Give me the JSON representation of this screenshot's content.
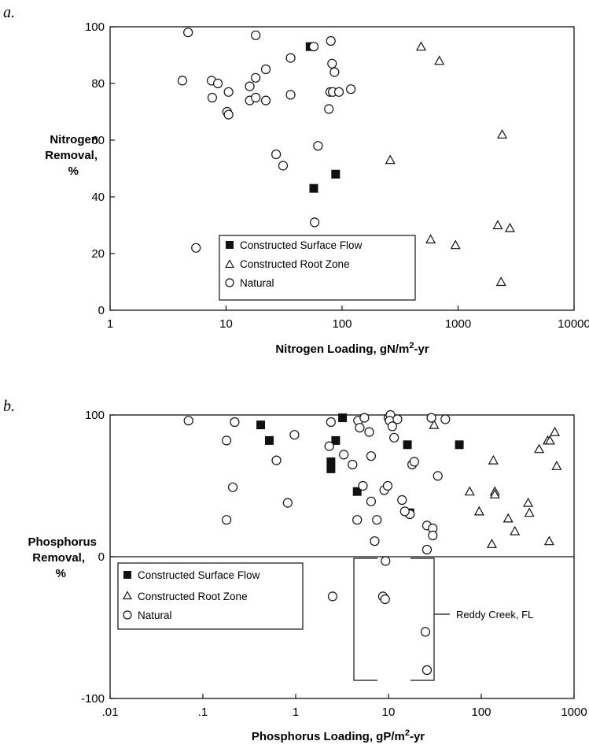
{
  "chart_data": [
    {
      "panel": "a.",
      "type": "scatter",
      "xscale": "log",
      "xlim": [
        1,
        10000
      ],
      "ylim": [
        0,
        100
      ],
      "xticks": [
        "1",
        "10",
        "100",
        "1000",
        "10000"
      ],
      "yticks": [
        "0",
        "20",
        "40",
        "60",
        "80",
        "100"
      ],
      "xlabel": "Nitrogen Loading,  gN/m2-yr",
      "ylabel": [
        "Nitrogen",
        "Removal,",
        "%"
      ],
      "legend": {
        "position": "bottom-center"
      },
      "series": [
        {
          "name": "Constructed Surface Flow",
          "marker": "filled-square",
          "points": [
            [
              53,
              93
            ],
            [
              57,
              43
            ],
            [
              88,
              48
            ]
          ]
        },
        {
          "name": "Constructed Root Zone",
          "marker": "open-triangle",
          "points": [
            [
              480,
              93
            ],
            [
              690,
              88
            ],
            [
              2400,
              62
            ],
            [
              260,
              53
            ],
            [
              580,
              25
            ],
            [
              950,
              23
            ],
            [
              2200,
              30
            ],
            [
              2800,
              29
            ],
            [
              2350,
              10
            ]
          ]
        },
        {
          "name": "Natural",
          "marker": "open-circle",
          "points": [
            [
              4.7,
              98
            ],
            [
              4.2,
              81
            ],
            [
              7.5,
              81
            ],
            [
              8.5,
              80
            ],
            [
              10.5,
              77
            ],
            [
              7.6,
              75
            ],
            [
              10.2,
              70
            ],
            [
              10.5,
              69
            ],
            [
              18,
              97
            ],
            [
              16,
              79
            ],
            [
              18,
              82
            ],
            [
              22,
              85
            ],
            [
              16,
              74
            ],
            [
              18,
              75
            ],
            [
              22,
              74
            ],
            [
              36,
              89
            ],
            [
              36,
              76
            ],
            [
              27,
              55
            ],
            [
              31,
              51
            ],
            [
              57,
              93
            ],
            [
              62,
              58
            ],
            [
              80,
              95
            ],
            [
              82,
              87
            ],
            [
              86,
              84
            ],
            [
              79,
              77
            ],
            [
              83,
              77
            ],
            [
              94,
              77
            ],
            [
              119,
              78
            ],
            [
              77,
              71
            ],
            [
              58,
              31
            ],
            [
              5.5,
              22
            ]
          ]
        }
      ]
    },
    {
      "panel": "b.",
      "type": "scatter",
      "xscale": "log",
      "xlim": [
        0.01,
        1000
      ],
      "ylim": [
        -100,
        100
      ],
      "xticks": [
        ".01",
        ".1",
        "1",
        "10",
        "100",
        "1000"
      ],
      "yticks": [
        "-100",
        "0",
        "100"
      ],
      "xlabel": "Phosphorus Loading, gP/m2-yr",
      "ylabel": [
        "Phosphorus",
        "Removal,",
        "%"
      ],
      "legend": {
        "position": "left-center"
      },
      "annotation": "Reddy Creek, FL",
      "series": [
        {
          "name": "Constructed Surface Flow",
          "marker": "filled-square",
          "points": [
            [
              0.42,
              93
            ],
            [
              0.52,
              82
            ],
            [
              2.7,
              82
            ],
            [
              3.2,
              98
            ],
            [
              2.4,
              67
            ],
            [
              2.4,
              62
            ],
            [
              4.6,
              46
            ],
            [
              16,
              79
            ],
            [
              17,
              31
            ],
            [
              58,
              79
            ]
          ]
        },
        {
          "name": "Constructed Root Zone",
          "marker": "open-triangle",
          "points": [
            [
              31,
              93
            ],
            [
              135,
              68
            ],
            [
              75,
              46
            ],
            [
              95,
              32
            ],
            [
              140,
              46
            ],
            [
              140,
              44
            ],
            [
              130,
              9
            ],
            [
              195,
              27
            ],
            [
              230,
              18
            ],
            [
              320,
              38
            ],
            [
              330,
              31
            ],
            [
              420,
              76
            ],
            [
              520,
              82
            ],
            [
              550,
              82
            ],
            [
              620,
              88
            ],
            [
              650,
              64
            ],
            [
              540,
              11
            ]
          ]
        },
        {
          "name": "Natural",
          "marker": "open-circle",
          "points": [
            [
              0.07,
              96
            ],
            [
              0.18,
              82
            ],
            [
              0.22,
              95
            ],
            [
              0.97,
              86
            ],
            [
              0.62,
              68
            ],
            [
              0.21,
              49
            ],
            [
              0.18,
              26
            ],
            [
              0.82,
              38
            ],
            [
              2.3,
              78
            ],
            [
              2.4,
              95
            ],
            [
              3.3,
              72
            ],
            [
              4.1,
              65
            ],
            [
              4.7,
              96
            ],
            [
              4.9,
              91
            ],
            [
              5.5,
              98
            ],
            [
              6.2,
              88
            ],
            [
              6.5,
              71
            ],
            [
              5.3,
              50
            ],
            [
              6.5,
              39
            ],
            [
              7.5,
              26
            ],
            [
              4.6,
              26
            ],
            [
              7.1,
              11
            ],
            [
              9.0,
              47
            ],
            [
              9.8,
              50
            ],
            [
              10,
              98
            ],
            [
              10.5,
              100
            ],
            [
              10.3,
              96
            ],
            [
              11,
              92
            ],
            [
              12.5,
              97
            ],
            [
              11.5,
              84
            ],
            [
              14,
              40
            ],
            [
              17,
              30
            ],
            [
              15,
              32
            ],
            [
              18,
              65
            ],
            [
              19,
              67
            ],
            [
              29,
              98
            ],
            [
              41,
              97
            ],
            [
              34,
              57
            ],
            [
              26,
              22
            ],
            [
              30,
              20
            ],
            [
              30,
              15
            ],
            [
              26,
              5
            ],
            [
              9.3,
              -3
            ],
            [
              2.5,
              -28
            ],
            [
              8.7,
              -28
            ],
            [
              9.2,
              -30
            ],
            [
              25,
              -53
            ],
            [
              26,
              -80
            ]
          ]
        }
      ]
    }
  ]
}
